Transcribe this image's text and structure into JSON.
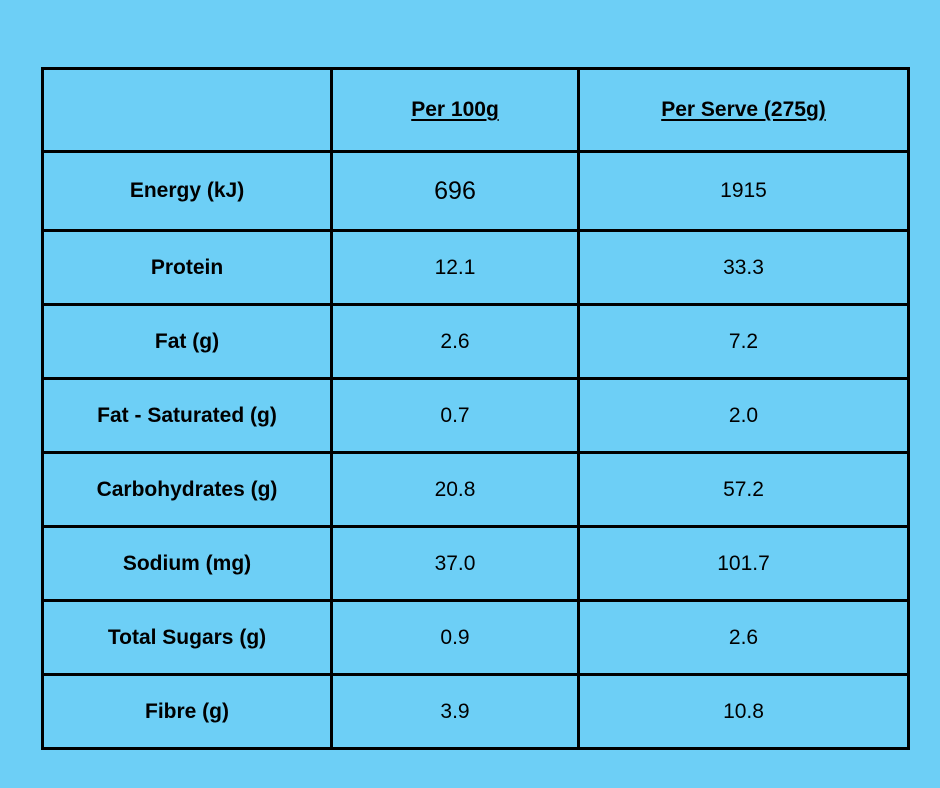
{
  "table": {
    "headers": [
      "",
      "Per 100g",
      "Per Serve (275g)"
    ],
    "rows": [
      {
        "nutrient": "Energy (kJ)",
        "per_100g": "696",
        "per_serve": "1915"
      },
      {
        "nutrient": "Protein",
        "per_100g": "12.1",
        "per_serve": "33.3"
      },
      {
        "nutrient": "Fat (g)",
        "per_100g": "2.6",
        "per_serve": "7.2"
      },
      {
        "nutrient": "Fat - Saturated (g)",
        "per_100g": "0.7",
        "per_serve": "2.0"
      },
      {
        "nutrient": "Carbohydrates (g)",
        "per_100g": "20.8",
        "per_serve": "57.2"
      },
      {
        "nutrient": "Sodium (mg)",
        "per_100g": "37.0",
        "per_serve": "101.7"
      },
      {
        "nutrient": "Total Sugars (g)",
        "per_100g": "0.9",
        "per_serve": "2.6"
      },
      {
        "nutrient": "Fibre (g)",
        "per_100g": "3.9",
        "per_serve": "10.8"
      }
    ]
  },
  "colors": {
    "background": "#6dcff6",
    "border": "#000000",
    "text": "#000000"
  }
}
